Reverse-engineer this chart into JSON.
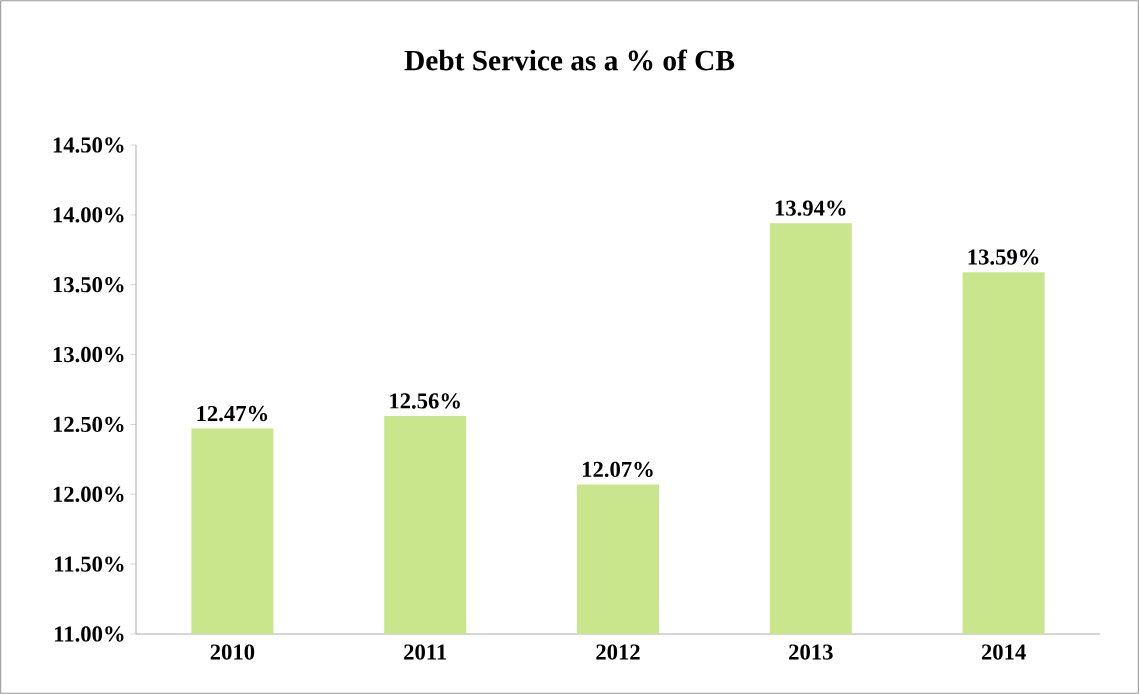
{
  "chart_data": {
    "type": "bar",
    "title": "Debt Service as a % of CB",
    "categories": [
      "2010",
      "2011",
      "2012",
      "2013",
      "2014"
    ],
    "values": [
      12.47,
      12.56,
      12.07,
      13.94,
      13.59
    ],
    "value_labels": [
      "12.47%",
      "12.56%",
      "12.07%",
      "13.94%",
      "13.59%"
    ],
    "color": "#c9e68c",
    "ylim": [
      11,
      14.5
    ],
    "yticks": [
      {
        "value": 11,
        "label": "11.00%"
      },
      {
        "value": 11.5,
        "label": "11.50%"
      },
      {
        "value": 12,
        "label": "12.00%"
      },
      {
        "value": 12.5,
        "label": "12.50%"
      },
      {
        "value": 13,
        "label": "13.00%"
      },
      {
        "value": 13.5,
        "label": "13.50%"
      },
      {
        "value": 14,
        "label": "14.00%"
      },
      {
        "value": 14.5,
        "label": "14.50%"
      }
    ],
    "grid": false
  }
}
